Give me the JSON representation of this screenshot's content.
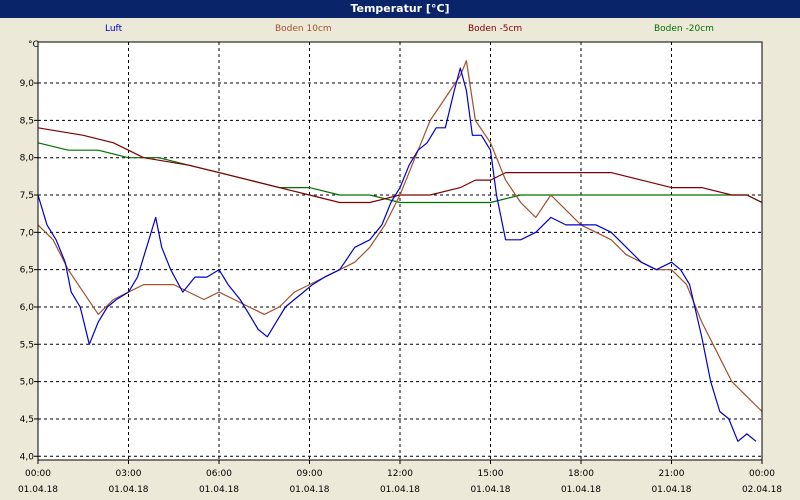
{
  "window": {
    "title": "Temperatur [°C]"
  },
  "chart_data": {
    "type": "line",
    "title": "Temperatur [°C]",
    "ylabel": "°C",
    "xlabel": "",
    "ylim": [
      3.95,
      9.55
    ],
    "xlim": [
      0,
      24
    ],
    "grid": true,
    "legend_position": "top",
    "y_ticks": [
      "4,0",
      "4,5",
      "5,0",
      "5,5",
      "6,0",
      "6,5",
      "7,0",
      "7,5",
      "8,0",
      "8,5",
      "9,0"
    ],
    "x_ticks": [
      {
        "time": "00:00",
        "date": "01.04.18"
      },
      {
        "time": "03:00",
        "date": "01.04.18"
      },
      {
        "time": "06:00",
        "date": "01.04.18"
      },
      {
        "time": "09:00",
        "date": "01.04.18"
      },
      {
        "time": "12:00",
        "date": "01.04.18"
      },
      {
        "time": "15:00",
        "date": "01.04.18"
      },
      {
        "time": "18:00",
        "date": "01.04.18"
      },
      {
        "time": "21:00",
        "date": "01.04.18"
      },
      {
        "time": "00:00",
        "date": "02.04.18"
      }
    ],
    "series": [
      {
        "name": "Luft",
        "color": "#0000CC",
        "points": [
          [
            0,
            7.5
          ],
          [
            0.3,
            7.1
          ],
          [
            0.6,
            6.9
          ],
          [
            0.9,
            6.6
          ],
          [
            1.1,
            6.2
          ],
          [
            1.4,
            6.0
          ],
          [
            1.7,
            5.5
          ],
          [
            2.0,
            5.8
          ],
          [
            2.3,
            6.0
          ],
          [
            2.6,
            6.1
          ],
          [
            3.0,
            6.2
          ],
          [
            3.3,
            6.4
          ],
          [
            3.6,
            6.8
          ],
          [
            3.9,
            7.2
          ],
          [
            4.1,
            6.8
          ],
          [
            4.4,
            6.5
          ],
          [
            4.8,
            6.2
          ],
          [
            5.2,
            6.4
          ],
          [
            5.6,
            6.4
          ],
          [
            6.0,
            6.5
          ],
          [
            6.3,
            6.3
          ],
          [
            6.7,
            6.1
          ],
          [
            7.0,
            5.9
          ],
          [
            7.3,
            5.7
          ],
          [
            7.6,
            5.6
          ],
          [
            7.9,
            5.8
          ],
          [
            8.2,
            6.0
          ],
          [
            8.5,
            6.1
          ],
          [
            8.8,
            6.2
          ],
          [
            9.1,
            6.3
          ],
          [
            9.5,
            6.4
          ],
          [
            10.0,
            6.5
          ],
          [
            10.5,
            6.8
          ],
          [
            11.0,
            6.9
          ],
          [
            11.4,
            7.1
          ],
          [
            11.7,
            7.4
          ],
          [
            12.0,
            7.6
          ],
          [
            12.3,
            7.9
          ],
          [
            12.6,
            8.1
          ],
          [
            12.9,
            8.2
          ],
          [
            13.2,
            8.4
          ],
          [
            13.5,
            8.4
          ],
          [
            13.8,
            8.9
          ],
          [
            14.0,
            9.2
          ],
          [
            14.2,
            8.9
          ],
          [
            14.4,
            8.3
          ],
          [
            14.7,
            8.3
          ],
          [
            15.0,
            8.1
          ],
          [
            15.2,
            7.5
          ],
          [
            15.5,
            6.9
          ],
          [
            16.0,
            6.9
          ],
          [
            16.5,
            7.0
          ],
          [
            17.0,
            7.2
          ],
          [
            17.5,
            7.1
          ],
          [
            18.0,
            7.1
          ],
          [
            18.5,
            7.1
          ],
          [
            19.0,
            7.0
          ],
          [
            19.5,
            6.8
          ],
          [
            20.0,
            6.6
          ],
          [
            20.5,
            6.5
          ],
          [
            21.0,
            6.6
          ],
          [
            21.3,
            6.5
          ],
          [
            21.6,
            6.3
          ],
          [
            22.0,
            5.6
          ],
          [
            22.3,
            5.0
          ],
          [
            22.6,
            4.6
          ],
          [
            22.9,
            4.5
          ],
          [
            23.2,
            4.2
          ],
          [
            23.5,
            4.3
          ],
          [
            23.8,
            4.2
          ]
        ]
      },
      {
        "name": "Boden 10cm",
        "color": "#A0522D",
        "points": [
          [
            0,
            7.1
          ],
          [
            0.5,
            6.9
          ],
          [
            1.0,
            6.5
          ],
          [
            1.5,
            6.2
          ],
          [
            2.0,
            5.9
          ],
          [
            2.5,
            6.1
          ],
          [
            3.0,
            6.2
          ],
          [
            3.5,
            6.3
          ],
          [
            4.0,
            6.3
          ],
          [
            4.5,
            6.3
          ],
          [
            5.0,
            6.2
          ],
          [
            5.5,
            6.1
          ],
          [
            6.0,
            6.2
          ],
          [
            6.5,
            6.1
          ],
          [
            7.0,
            6.0
          ],
          [
            7.5,
            5.9
          ],
          [
            8.0,
            6.0
          ],
          [
            8.5,
            6.2
          ],
          [
            9.0,
            6.3
          ],
          [
            9.5,
            6.4
          ],
          [
            10.0,
            6.5
          ],
          [
            10.5,
            6.6
          ],
          [
            11.0,
            6.8
          ],
          [
            11.5,
            7.1
          ],
          [
            12.0,
            7.5
          ],
          [
            12.5,
            8.0
          ],
          [
            13.0,
            8.5
          ],
          [
            13.5,
            8.8
          ],
          [
            14.0,
            9.1
          ],
          [
            14.2,
            9.3
          ],
          [
            14.5,
            8.5
          ],
          [
            15.0,
            8.2
          ],
          [
            15.5,
            7.7
          ],
          [
            16.0,
            7.4
          ],
          [
            16.5,
            7.2
          ],
          [
            17.0,
            7.5
          ],
          [
            17.5,
            7.3
          ],
          [
            18.0,
            7.1
          ],
          [
            18.5,
            7.0
          ],
          [
            19.0,
            6.9
          ],
          [
            19.5,
            6.7
          ],
          [
            20.0,
            6.6
          ],
          [
            20.5,
            6.5
          ],
          [
            21.0,
            6.5
          ],
          [
            21.5,
            6.3
          ],
          [
            22.0,
            5.8
          ],
          [
            22.5,
            5.4
          ],
          [
            23.0,
            5.0
          ],
          [
            23.5,
            4.8
          ],
          [
            24.0,
            4.6
          ]
        ]
      },
      {
        "name": "Boden -5cm",
        "color": "#800000",
        "points": [
          [
            0,
            8.4
          ],
          [
            1.5,
            8.3
          ],
          [
            2.5,
            8.2
          ],
          [
            3.0,
            8.1
          ],
          [
            3.5,
            8.0
          ],
          [
            5.0,
            7.9
          ],
          [
            6.0,
            7.8
          ],
          [
            7.0,
            7.7
          ],
          [
            8.0,
            7.6
          ],
          [
            9.0,
            7.5
          ],
          [
            10.0,
            7.4
          ],
          [
            11.0,
            7.4
          ],
          [
            12.0,
            7.5
          ],
          [
            13.0,
            7.5
          ],
          [
            14.0,
            7.6
          ],
          [
            14.5,
            7.7
          ],
          [
            15.0,
            7.7
          ],
          [
            15.5,
            7.8
          ],
          [
            18.0,
            7.8
          ],
          [
            19.0,
            7.8
          ],
          [
            20.0,
            7.7
          ],
          [
            21.0,
            7.6
          ],
          [
            22.0,
            7.6
          ],
          [
            23.0,
            7.5
          ],
          [
            23.5,
            7.5
          ],
          [
            24.0,
            7.4
          ]
        ]
      },
      {
        "name": "Boden -20cm",
        "color": "#007000",
        "points": [
          [
            0,
            8.2
          ],
          [
            1.0,
            8.1
          ],
          [
            2.0,
            8.1
          ],
          [
            3.0,
            8.0
          ],
          [
            4.0,
            8.0
          ],
          [
            5.0,
            7.9
          ],
          [
            6.0,
            7.8
          ],
          [
            7.0,
            7.7
          ],
          [
            8.0,
            7.6
          ],
          [
            9.0,
            7.6
          ],
          [
            10.0,
            7.5
          ],
          [
            11.0,
            7.5
          ],
          [
            12.0,
            7.4
          ],
          [
            13.0,
            7.4
          ],
          [
            14.0,
            7.4
          ],
          [
            15.0,
            7.4
          ],
          [
            16.0,
            7.5
          ],
          [
            20.0,
            7.5
          ],
          [
            22.0,
            7.5
          ],
          [
            23.0,
            7.5
          ],
          [
            23.5,
            7.5
          ],
          [
            24.0,
            7.4
          ]
        ]
      }
    ]
  }
}
